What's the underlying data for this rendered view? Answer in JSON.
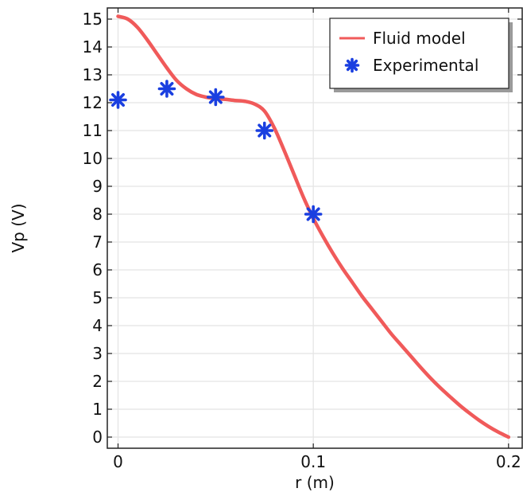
{
  "chart_data": {
    "type": "line",
    "title": "",
    "xlabel": "r (m)",
    "ylabel": "Vp (V)",
    "xlim": [
      -0.0055,
      0.207
    ],
    "ylim": [
      -0.4,
      15.4
    ],
    "x_ticks": [
      0,
      0.1,
      0.2
    ],
    "x_tick_labels": [
      "0",
      "0.1",
      "0.2"
    ],
    "y_ticks": [
      0,
      1,
      2,
      3,
      4,
      5,
      6,
      7,
      8,
      9,
      10,
      11,
      12,
      13,
      14,
      15
    ],
    "y_tick_labels": [
      "0",
      "1",
      "2",
      "3",
      "4",
      "5",
      "6",
      "7",
      "8",
      "9",
      "10",
      "11",
      "12",
      "13",
      "14",
      "15"
    ],
    "grid": true,
    "legend_position": "top-right",
    "series": [
      {
        "name": "Fluid model",
        "kind": "line",
        "color": "#f05a5a",
        "x": [
          0,
          0.005,
          0.01,
          0.015,
          0.02,
          0.025,
          0.03,
          0.035,
          0.04,
          0.045,
          0.05,
          0.055,
          0.06,
          0.065,
          0.07,
          0.075,
          0.08,
          0.085,
          0.09,
          0.095,
          0.1,
          0.105,
          0.11,
          0.115,
          0.12,
          0.125,
          0.13,
          0.135,
          0.14,
          0.145,
          0.15,
          0.155,
          0.16,
          0.165,
          0.17,
          0.175,
          0.18,
          0.185,
          0.19,
          0.195,
          0.2
        ],
        "y": [
          15.1,
          15.0,
          14.7,
          14.25,
          13.75,
          13.25,
          12.8,
          12.5,
          12.3,
          12.2,
          12.15,
          12.12,
          12.08,
          12.05,
          11.95,
          11.7,
          11.1,
          10.3,
          9.45,
          8.6,
          7.85,
          7.2,
          6.6,
          6.05,
          5.55,
          5.05,
          4.6,
          4.15,
          3.7,
          3.3,
          2.9,
          2.5,
          2.12,
          1.77,
          1.45,
          1.14,
          0.86,
          0.6,
          0.37,
          0.17,
          0.0
        ]
      },
      {
        "name": "Experimental",
        "kind": "scatter",
        "marker": "asterisk",
        "color": "#1a3fe0",
        "x": [
          0,
          0.025,
          0.05,
          0.075,
          0.1
        ],
        "y": [
          12.1,
          12.5,
          12.2,
          11.0,
          8.0
        ]
      }
    ]
  }
}
